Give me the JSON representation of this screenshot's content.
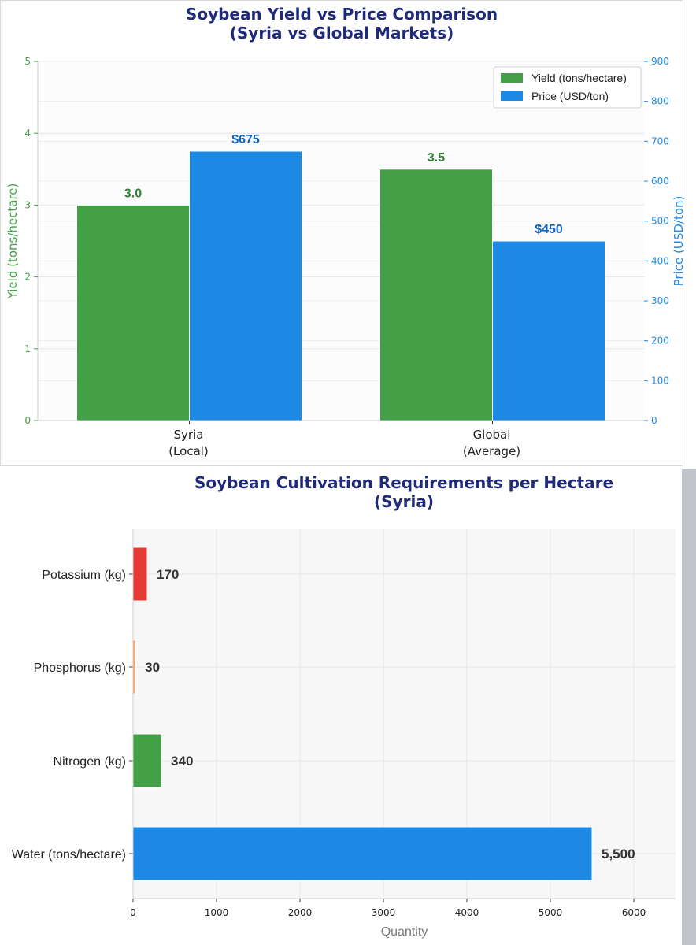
{
  "chart_data": [
    {
      "type": "bar",
      "title": "Soybean Yield vs Price Comparison\n(Syria vs Global Markets)",
      "categories": [
        "Syria\n(Local)",
        "Global\n(Average)"
      ],
      "series": [
        {
          "name": "Yield (tons/hectare)",
          "axis": "left",
          "values": [
            3.0,
            3.5
          ],
          "labels": [
            "3.0",
            "3.5"
          ],
          "color": "#43a047",
          "label_color": "#2e7d32"
        },
        {
          "name": "Price (USD/ton)",
          "axis": "right",
          "values": [
            675,
            450
          ],
          "labels": [
            "$675",
            "$450"
          ],
          "color": "#1e88e5",
          "label_color": "#1565c0"
        }
      ],
      "ylabel": "Yield (tons/hectare)",
      "ylabel_right": "Price (USD/ton)",
      "ylim": [
        0,
        5
      ],
      "ylim_right": [
        0,
        900
      ],
      "yticks": [
        0,
        1,
        2,
        3,
        4,
        5
      ],
      "yticks_right": [
        0,
        100,
        200,
        300,
        400,
        500,
        600,
        700,
        800,
        900
      ],
      "grid": true,
      "legend_position": "top-right",
      "colors": {
        "left_axis": "#43a047",
        "right_axis": "#1e88e5",
        "title": "#1f2a7a"
      }
    },
    {
      "type": "bar",
      "orientation": "horizontal",
      "title": "Soybean Cultivation Requirements per Hectare\n(Syria)",
      "categories": [
        "Water (tons/hectare)",
        "Nitrogen (kg)",
        "Phosphorus (kg)",
        "Potassium (kg)"
      ],
      "values": [
        5500,
        340,
        30,
        170
      ],
      "labels": [
        "5,500",
        "340",
        "30",
        "170"
      ],
      "colors": [
        "#1e88e5",
        "#43a047",
        "#f4a460",
        "#e53935"
      ],
      "xlabel": "Quantity",
      "xlim": [
        0,
        6500
      ],
      "xticks": [
        0,
        1000,
        2000,
        3000,
        4000,
        5000,
        6000
      ],
      "grid": true
    }
  ]
}
